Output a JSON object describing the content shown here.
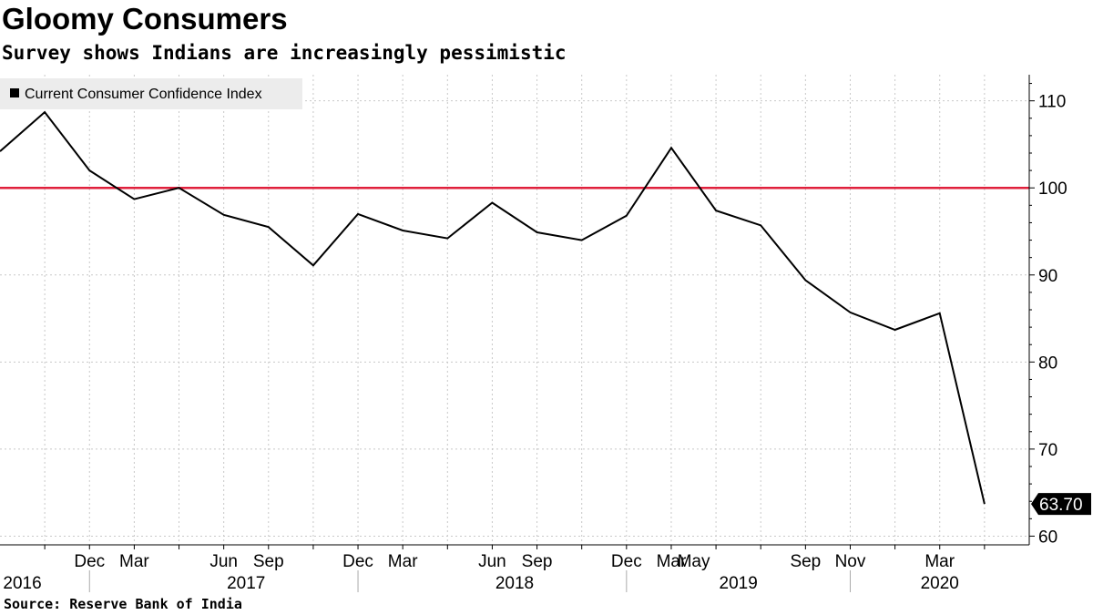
{
  "title": "Gloomy Consumers",
  "subtitle": "Survey shows Indians are increasingly pessimistic",
  "source": "Source: Reserve Bank of India",
  "chart_data": {
    "type": "line",
    "series": [
      {
        "name": "Current Consumer Confidence Index",
        "color": "#000000",
        "points": [
          {
            "x": "2016-07",
            "y": 104.2
          },
          {
            "x": "2016-09",
            "y": 108.7
          },
          {
            "x": "2016-11",
            "y": 102.0
          },
          {
            "x": "2017-01",
            "y": 98.7
          },
          {
            "x": "2017-03",
            "y": 100.0
          },
          {
            "x": "2017-05",
            "y": 96.9
          },
          {
            "x": "2017-07",
            "y": 95.5
          },
          {
            "x": "2017-09",
            "y": 91.1
          },
          {
            "x": "2017-11",
            "y": 97.0
          },
          {
            "x": "2018-01",
            "y": 95.1
          },
          {
            "x": "2018-03",
            "y": 94.2
          },
          {
            "x": "2018-05",
            "y": 98.3
          },
          {
            "x": "2018-07",
            "y": 94.9
          },
          {
            "x": "2018-09",
            "y": 94.0
          },
          {
            "x": "2018-11",
            "y": 96.8
          },
          {
            "x": "2019-01",
            "y": 104.6
          },
          {
            "x": "2019-03",
            "y": 97.4
          },
          {
            "x": "2019-05",
            "y": 95.7
          },
          {
            "x": "2019-07",
            "y": 89.4
          },
          {
            "x": "2019-09",
            "y": 85.7
          },
          {
            "x": "2019-11",
            "y": 83.7
          },
          {
            "x": "2020-01",
            "y": 85.6
          },
          {
            "x": "2020-03",
            "y": 63.7
          }
        ]
      }
    ],
    "reference_line": {
      "y": 100,
      "color": "#e0203c"
    },
    "last_value_label": "63.70",
    "x_tick_labels": [
      {
        "x": "2016-11",
        "label": "Dec"
      },
      {
        "x": "2017-01",
        "label": "Mar"
      },
      {
        "x": "2017-05",
        "label": "Jun"
      },
      {
        "x": "2017-07",
        "label": "Sep"
      },
      {
        "x": "2017-11",
        "label": "Dec"
      },
      {
        "x": "2018-01",
        "label": "Mar"
      },
      {
        "x": "2018-05",
        "label": "Jun"
      },
      {
        "x": "2018-07",
        "label": "Sep"
      },
      {
        "x": "2018-11",
        "label": "Dec"
      },
      {
        "x": "2019-01",
        "label": "Mar"
      },
      {
        "x": "2019-02",
        "label": "May"
      },
      {
        "x": "2019-07",
        "label": "Sep"
      },
      {
        "x": "2019-09",
        "label": "Nov"
      },
      {
        "x": "2020-01",
        "label": "Mar"
      }
    ],
    "year_labels": [
      {
        "x": "2016-08",
        "label": "2016"
      },
      {
        "x": "2017-06",
        "label": "2017"
      },
      {
        "x": "2018-06",
        "label": "2018"
      },
      {
        "x": "2019-04",
        "label": "2019"
      },
      {
        "x": "2020-01",
        "label": "2020"
      }
    ],
    "year_dividers": [
      "2016-11",
      "2017-11",
      "2018-11",
      "2019-09"
    ],
    "xlim": [
      "2016-07",
      "2020-05"
    ],
    "ylim": [
      59,
      113
    ],
    "y_ticks": [
      60,
      70,
      80,
      90,
      100,
      110
    ],
    "y_axis_position": "right",
    "grid": true,
    "legend_position": "top-left"
  }
}
